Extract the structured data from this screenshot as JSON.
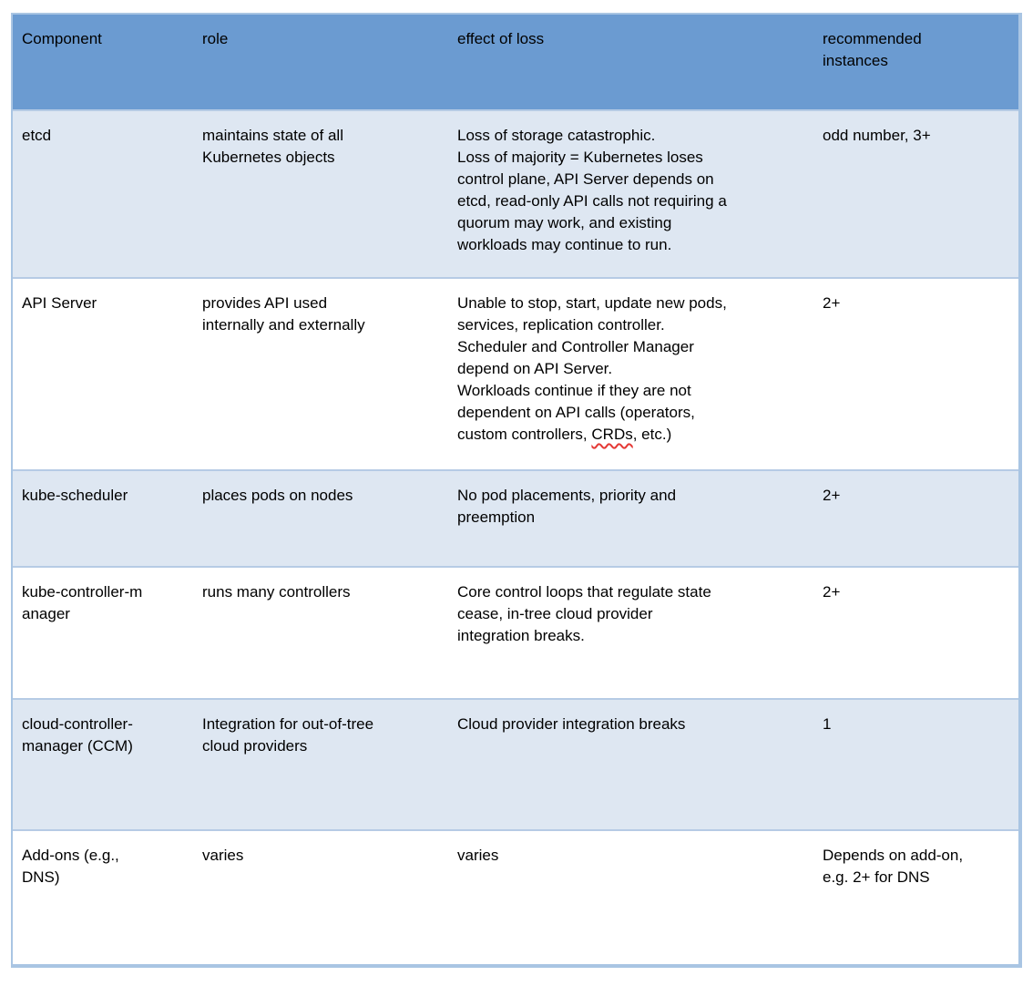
{
  "colors": {
    "header_bg": "#6b9bd1",
    "band_row_bg": "#dee7f2",
    "plain_row_bg": "#ffffff",
    "outer_border": "#a9c5e3",
    "row_divider": "#b6cbe5",
    "text": "#000000",
    "spellcheck_underline": "#e53935"
  },
  "table": {
    "columns": [
      {
        "id": "component",
        "lines": [
          "Component"
        ]
      },
      {
        "id": "role",
        "lines": [
          "role"
        ]
      },
      {
        "id": "effect",
        "lines": [
          "effect of loss"
        ]
      },
      {
        "id": "instances",
        "lines": [
          "recommended",
          "instances"
        ]
      }
    ],
    "rows": [
      {
        "shaded": true,
        "component": [
          "etcd"
        ],
        "role": [
          "maintains state of all",
          "Kubernetes objects"
        ],
        "effect": [
          "Loss of storage catastrophic.",
          "Loss of majority = Kubernetes loses",
          "control plane, API Server depends on",
          "etcd, read-only API calls not requiring a",
          "quorum may work, and existing",
          "workloads may continue to run."
        ],
        "instances": [
          "odd number, 3+"
        ]
      },
      {
        "shaded": false,
        "component": [
          "API Server"
        ],
        "role": [
          "provides API used",
          "internally and externally"
        ],
        "effect": [
          "Unable to stop, start, update new pods,",
          "services, replication controller.",
          "Scheduler and Controller Manager",
          "depend on API Server.",
          "Workloads continue if they are not",
          "dependent on API calls (operators,",
          "custom controllers, CRDs, etc.)"
        ],
        "instances": [
          "2+"
        ],
        "misspelled": "CRDs"
      },
      {
        "shaded": true,
        "component": [
          "kube-scheduler"
        ],
        "role": [
          "places pods on nodes"
        ],
        "effect": [
          "No pod placements, priority and",
          "preemption"
        ],
        "instances": [
          "2+"
        ]
      },
      {
        "shaded": false,
        "component": [
          "kube-controller-m",
          "anager"
        ],
        "role": [
          "runs many controllers"
        ],
        "effect": [
          "Core control loops that regulate state",
          "cease, in-tree cloud provider",
          "integration breaks."
        ],
        "instances": [
          "2+"
        ]
      },
      {
        "shaded": true,
        "component": [
          "cloud-controller-",
          "manager (CCM)"
        ],
        "role": [
          "Integration for out-of-tree",
          "cloud providers"
        ],
        "effect": [
          "Cloud provider integration breaks"
        ],
        "instances": [
          "1"
        ]
      },
      {
        "shaded": false,
        "component": [
          "Add-ons (e.g.,",
          "DNS)"
        ],
        "role": [
          "varies"
        ],
        "effect": [
          "varies"
        ],
        "instances": [
          "Depends on add-on,",
          "e.g. 2+ for DNS"
        ]
      }
    ]
  }
}
